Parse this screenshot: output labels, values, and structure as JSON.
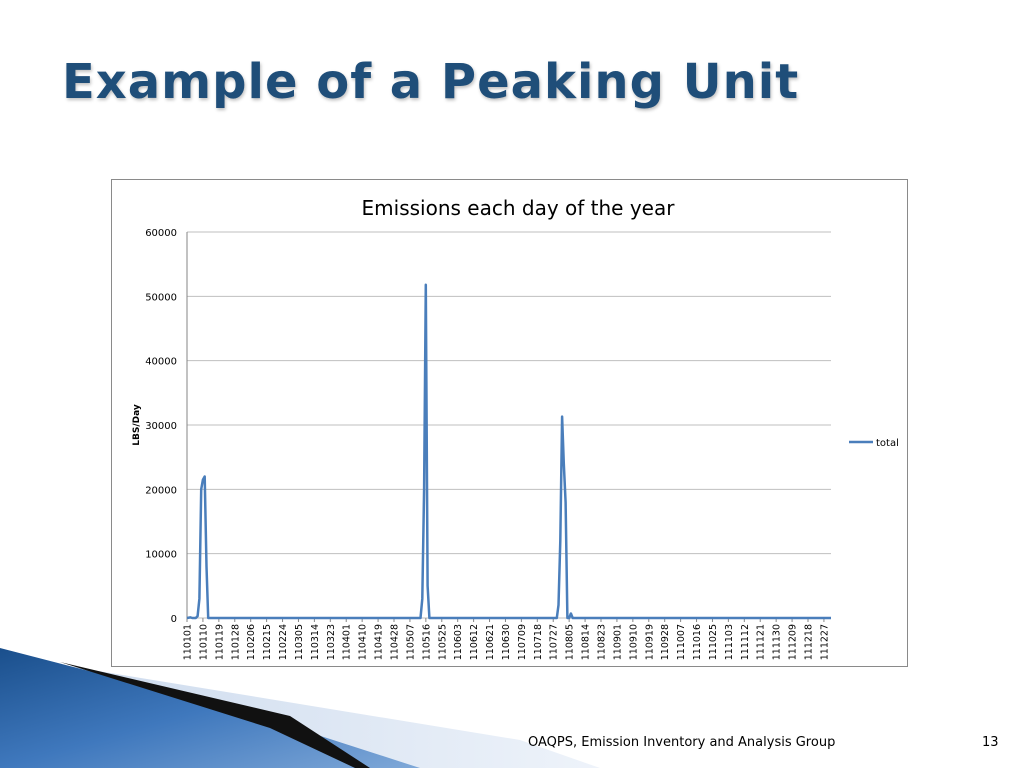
{
  "slide": {
    "title": "Example of a Peaking Unit",
    "footer": "OAQPS, Emission Inventory and Analysis Group",
    "page_number": "13"
  },
  "colors": {
    "title": "#1f4e79",
    "series": "#4a7ebb",
    "gridline": "#bfbfbf",
    "decor_blue_dark": "#1a4f8c",
    "decor_blue_light": "#b8cce4"
  },
  "chart_data": {
    "type": "line",
    "title": "Emissions each day of the year",
    "xlabel": "",
    "ylabel": "LBS/Day",
    "ylim": [
      0,
      60000
    ],
    "yticks": [
      0,
      10000,
      20000,
      30000,
      40000,
      50000,
      60000
    ],
    "xtick_labels": [
      "110101",
      "110110",
      "110119",
      "110128",
      "110206",
      "110215",
      "110224",
      "110305",
      "110314",
      "110323",
      "110401",
      "110410",
      "110419",
      "110428",
      "110507",
      "110516",
      "110525",
      "110603",
      "110612",
      "110621",
      "110630",
      "110709",
      "110718",
      "110727",
      "110805",
      "110814",
      "110823",
      "110901",
      "110910",
      "110919",
      "110928",
      "111007",
      "111016",
      "111025",
      "111103",
      "111112",
      "111121",
      "111130",
      "111209",
      "111218",
      "111227"
    ],
    "grid": true,
    "legend": "right",
    "series": [
      {
        "name": "total",
        "baseline": 0,
        "points": [
          [
            "110101",
            0
          ],
          [
            "110103",
            100
          ],
          [
            "110104",
            0
          ],
          [
            "110105",
            0
          ],
          [
            "110106",
            0
          ],
          [
            "110107",
            300
          ],
          [
            "110108",
            3000
          ],
          [
            "110109",
            20000
          ],
          [
            "110110",
            21500
          ],
          [
            "110111",
            22000
          ],
          [
            "110112",
            8000
          ],
          [
            "110113",
            0
          ],
          [
            "110513",
            0
          ],
          [
            "110514",
            3000
          ],
          [
            "110515",
            20000
          ],
          [
            "110516",
            51800
          ],
          [
            "110517",
            5000
          ],
          [
            "110518",
            0
          ],
          [
            "110729",
            0
          ],
          [
            "110730",
            2000
          ],
          [
            "110731",
            12000
          ],
          [
            "110801",
            31300
          ],
          [
            "110802",
            24000
          ],
          [
            "110803",
            18000
          ],
          [
            "110804",
            0
          ],
          [
            "110805",
            0
          ],
          [
            "110806",
            700
          ],
          [
            "110807",
            0
          ],
          [
            "111231",
            0
          ]
        ]
      }
    ]
  }
}
